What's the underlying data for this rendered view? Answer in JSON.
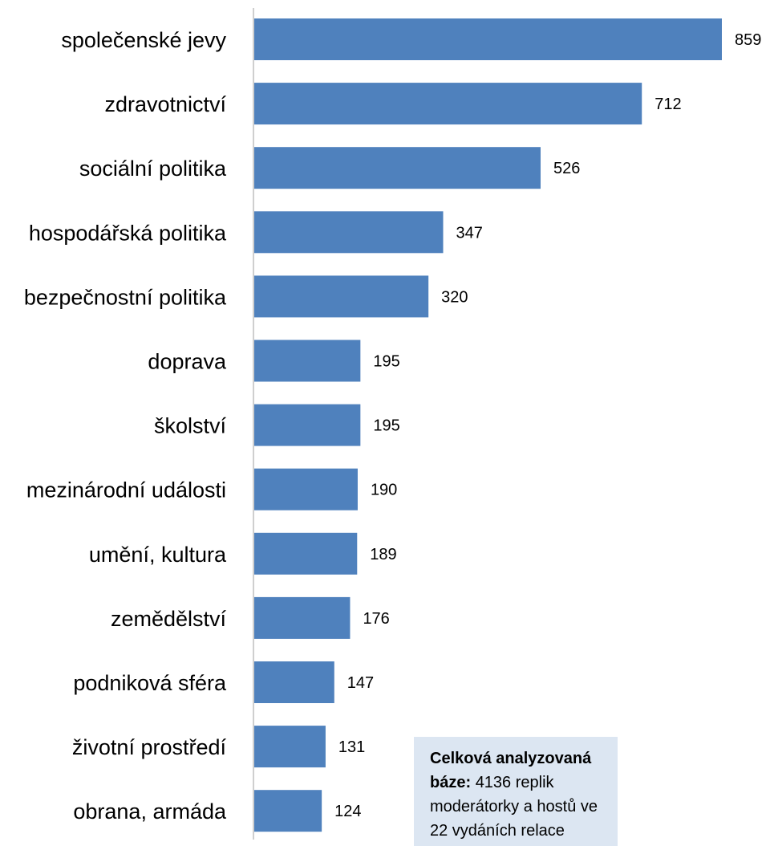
{
  "chart_data": {
    "type": "bar",
    "orientation": "horizontal",
    "categories": [
      "společenské jevy",
      "zdravotnictví",
      "sociální politika",
      "hospodářská politika",
      "bezpečnostní politika",
      "doprava",
      "školství",
      "mezinárodní události",
      "umění, kultura",
      "zemědělství",
      "podniková sféra",
      "životní prostředí",
      "obrana, armáda"
    ],
    "values": [
      859,
      712,
      526,
      347,
      320,
      195,
      195,
      190,
      189,
      176,
      147,
      131,
      124
    ],
    "value_labels": [
      "859",
      "712",
      "526",
      "347",
      "320",
      "195",
      "195",
      "190",
      "189",
      "176",
      "147",
      "131",
      "124"
    ],
    "title": "",
    "xlabel": "",
    "ylabel": "",
    "xlim": [
      0,
      859
    ],
    "grid": false,
    "bar_color": "#4f81bd",
    "axis_color": "#bfbfbf"
  },
  "note": {
    "bold": "Celková analyzovaná báze:",
    "text": "4136 replik moderátorky a hostů ve 22 vydáních relace",
    "background": "#dce6f2"
  }
}
